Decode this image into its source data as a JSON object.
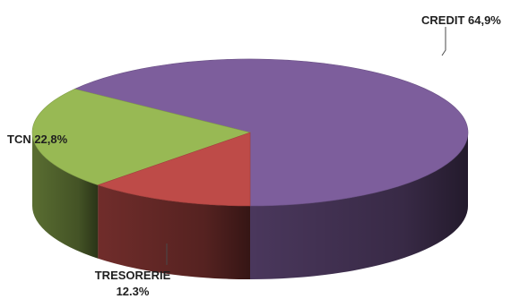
{
  "chart_data": {
    "type": "pie",
    "style": "3d",
    "slices": [
      {
        "label": "CREDIT",
        "value_text": "64,9%",
        "value": 64.9,
        "color": "#7d5e9c"
      },
      {
        "label": "TCN",
        "value_text": "22,8%",
        "value": 22.8,
        "color": "#98b954"
      },
      {
        "label": "TRESORERIE",
        "value_text": "12.3%",
        "value": 12.3,
        "color": "#be4b48"
      }
    ],
    "labels": {
      "credit": "CREDIT 64,9%",
      "tcn": "TCN 22,8%",
      "tresorerie_line1": "TRESORERIE",
      "tresorerie_line2": "12.3%"
    }
  }
}
